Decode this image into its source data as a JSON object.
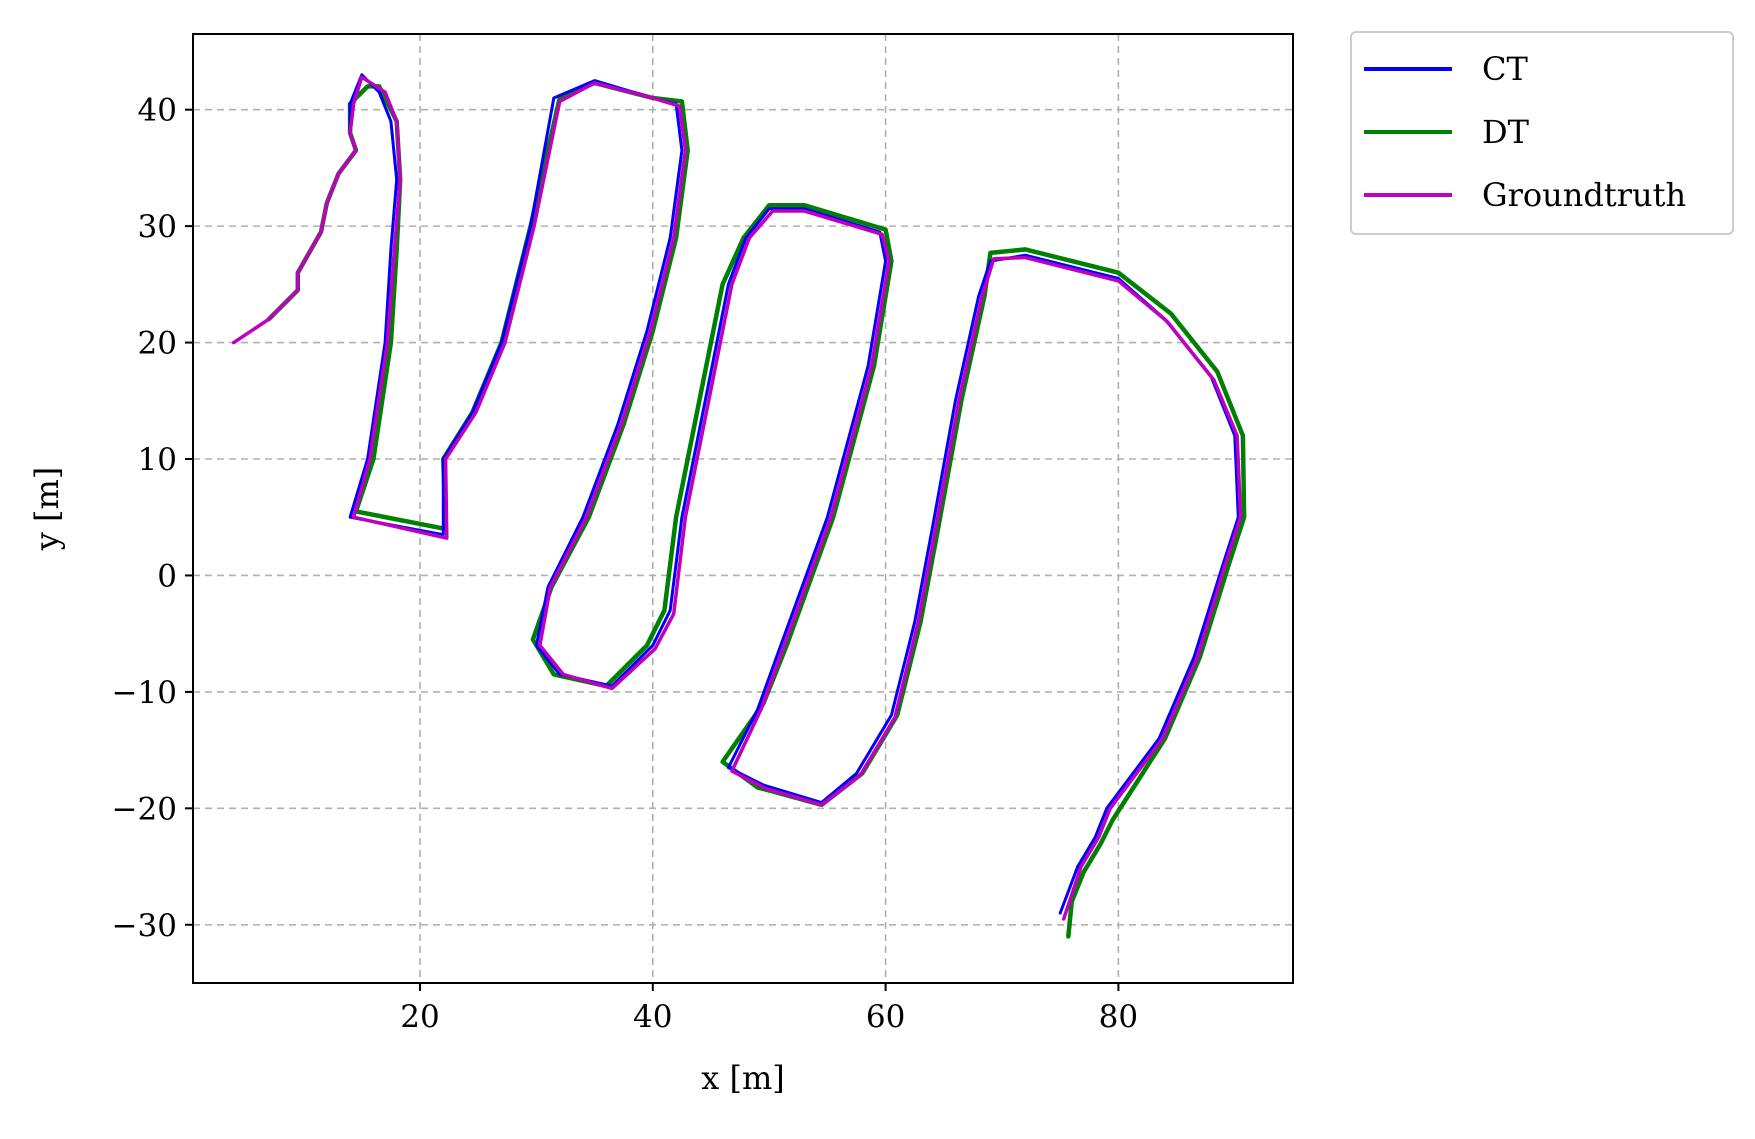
{
  "chart_data": {
    "type": "line",
    "title": "",
    "xlabel": "x [m]",
    "ylabel": "y [m]",
    "xlim": [
      0.5,
      95
    ],
    "ylim": [
      -35,
      46.5
    ],
    "xticks": [
      20,
      40,
      60,
      80
    ],
    "yticks": [
      -30,
      -20,
      -10,
      0,
      10,
      20,
      30,
      40
    ],
    "xtick_labels": [
      "20",
      "40",
      "60",
      "80"
    ],
    "ytick_labels": [
      "−30",
      "−20",
      "−10",
      "0",
      "10",
      "20",
      "30",
      "40"
    ],
    "grid": true,
    "legend_placement": "outside-top-right",
    "series": [
      {
        "name": "CT",
        "color": "#0000ff",
        "points": [
          [
            4,
            20
          ],
          [
            7,
            22
          ],
          [
            9.5,
            24.5
          ],
          [
            9.5,
            26
          ],
          [
            11.5,
            29.5
          ],
          [
            12,
            32
          ],
          [
            13,
            34.5
          ],
          [
            14.5,
            36.5
          ],
          [
            14,
            38
          ],
          [
            14,
            40.5
          ],
          [
            15,
            43
          ],
          [
            16.5,
            41.5
          ],
          [
            17.5,
            39
          ],
          [
            18,
            34
          ],
          [
            17.5,
            28
          ],
          [
            17,
            20
          ],
          [
            15.5,
            10
          ],
          [
            14,
            5
          ],
          [
            22,
            3.5
          ],
          [
            22,
            10
          ],
          [
            24.5,
            14
          ],
          [
            27,
            20
          ],
          [
            29.5,
            30
          ],
          [
            31.5,
            41
          ],
          [
            35,
            42.5
          ],
          [
            40,
            41
          ],
          [
            42,
            40.5
          ],
          [
            42.5,
            36.5
          ],
          [
            41.5,
            29
          ],
          [
            39.5,
            21
          ],
          [
            37,
            13
          ],
          [
            34,
            5
          ],
          [
            31,
            -1
          ],
          [
            30,
            -6
          ],
          [
            32,
            -8.5
          ],
          [
            36.5,
            -9.5
          ],
          [
            40,
            -6
          ],
          [
            41.5,
            -3
          ],
          [
            42.5,
            5
          ],
          [
            44.5,
            15
          ],
          [
            46.5,
            25
          ],
          [
            48,
            29
          ],
          [
            50,
            31.5
          ],
          [
            53,
            31.5
          ],
          [
            59.5,
            29.5
          ],
          [
            60,
            27
          ],
          [
            58.5,
            18
          ],
          [
            55,
            5
          ],
          [
            51,
            -6
          ],
          [
            49,
            -11.5
          ],
          [
            46.5,
            -16.5
          ],
          [
            49.5,
            -18
          ],
          [
            54.5,
            -19.5
          ],
          [
            57.5,
            -17
          ],
          [
            60.5,
            -12
          ],
          [
            62.5,
            -4
          ],
          [
            64,
            4
          ],
          [
            66,
            15
          ],
          [
            68,
            24
          ],
          [
            69,
            27
          ],
          [
            72,
            27.5
          ],
          [
            80,
            25.5
          ],
          [
            84,
            22
          ],
          [
            88,
            17
          ],
          [
            90,
            12
          ],
          [
            90.3,
            5
          ],
          [
            89,
            1
          ],
          [
            86.5,
            -7
          ],
          [
            83.5,
            -14
          ],
          [
            79,
            -20
          ],
          [
            78,
            -22.5
          ],
          [
            76.5,
            -25
          ],
          [
            75,
            -29
          ]
        ]
      },
      {
        "name": "DT",
        "color": "#008000",
        "points": [
          [
            7,
            22
          ],
          [
            9.5,
            24.5
          ],
          [
            9.5,
            26
          ],
          [
            11.5,
            29.5
          ],
          [
            12,
            32
          ],
          [
            13,
            34.5
          ],
          [
            14.5,
            36.5
          ],
          [
            14,
            38
          ],
          [
            14,
            40.5
          ],
          [
            15.5,
            42
          ],
          [
            16.5,
            42
          ],
          [
            18,
            39
          ],
          [
            18.3,
            34
          ],
          [
            18,
            28
          ],
          [
            17.5,
            20
          ],
          [
            16,
            10
          ],
          [
            14.5,
            5.5
          ],
          [
            22.2,
            4
          ],
          [
            22,
            10
          ],
          [
            24.5,
            14
          ],
          [
            27,
            20
          ],
          [
            29.5,
            30
          ],
          [
            32,
            41
          ],
          [
            35,
            42.3
          ],
          [
            40,
            41
          ],
          [
            42.5,
            40.7
          ],
          [
            43,
            36.5
          ],
          [
            42,
            29
          ],
          [
            40,
            21
          ],
          [
            37.5,
            13
          ],
          [
            34.5,
            5
          ],
          [
            31.3,
            -1
          ],
          [
            29.7,
            -5.5
          ],
          [
            31.5,
            -8.5
          ],
          [
            36,
            -9.5
          ],
          [
            39.5,
            -6
          ],
          [
            41,
            -3
          ],
          [
            42,
            5
          ],
          [
            44,
            15
          ],
          [
            46,
            25
          ],
          [
            47.8,
            29
          ],
          [
            50,
            31.8
          ],
          [
            53,
            31.8
          ],
          [
            60,
            29.7
          ],
          [
            60.5,
            27
          ],
          [
            59,
            18
          ],
          [
            55.5,
            5
          ],
          [
            51.5,
            -6
          ],
          [
            49.5,
            -11
          ],
          [
            46,
            -16
          ],
          [
            49,
            -18.2
          ],
          [
            54.5,
            -19.7
          ],
          [
            58,
            -17
          ],
          [
            61,
            -12
          ],
          [
            63,
            -4
          ],
          [
            64.5,
            4
          ],
          [
            66.5,
            15
          ],
          [
            68.5,
            24
          ],
          [
            69,
            27.7
          ],
          [
            72,
            28
          ],
          [
            80,
            26
          ],
          [
            84.5,
            22.5
          ],
          [
            88.5,
            17.5
          ],
          [
            90.7,
            12
          ],
          [
            90.8,
            5
          ],
          [
            89.5,
            1
          ],
          [
            87,
            -7
          ],
          [
            84,
            -14
          ],
          [
            79.5,
            -21
          ],
          [
            78.5,
            -23
          ],
          [
            77,
            -25.5
          ],
          [
            76,
            -28
          ],
          [
            75.7,
            -31
          ]
        ]
      },
      {
        "name": "Groundtruth",
        "color": "#bf00bf",
        "points": [
          [
            4,
            20
          ],
          [
            7,
            22
          ],
          [
            9.5,
            24.5
          ],
          [
            9.5,
            26
          ],
          [
            11.5,
            29.5
          ],
          [
            12,
            32
          ],
          [
            13,
            34.5
          ],
          [
            14.5,
            36.5
          ],
          [
            14,
            38
          ],
          [
            14.3,
            40.5
          ],
          [
            15,
            42.8
          ],
          [
            17,
            41.5
          ],
          [
            18,
            39
          ],
          [
            18.3,
            34
          ],
          [
            17.8,
            28
          ],
          [
            17.2,
            20
          ],
          [
            15.7,
            10
          ],
          [
            14.3,
            5
          ],
          [
            22.3,
            3.2
          ],
          [
            22.2,
            10
          ],
          [
            24.8,
            14
          ],
          [
            27.3,
            20
          ],
          [
            29.8,
            30
          ],
          [
            32,
            40.7
          ],
          [
            35,
            42.3
          ],
          [
            40,
            41
          ],
          [
            42.3,
            40.3
          ],
          [
            42.8,
            36.5
          ],
          [
            41.8,
            29
          ],
          [
            39.8,
            21
          ],
          [
            37.3,
            13
          ],
          [
            34.3,
            5
          ],
          [
            31.2,
            -1
          ],
          [
            30.3,
            -6
          ],
          [
            32.3,
            -8.5
          ],
          [
            36.5,
            -9.7
          ],
          [
            40.2,
            -6.3
          ],
          [
            41.8,
            -3.3
          ],
          [
            42.8,
            5
          ],
          [
            44.8,
            15
          ],
          [
            46.8,
            25
          ],
          [
            48.3,
            29
          ],
          [
            50.3,
            31.3
          ],
          [
            53,
            31.3
          ],
          [
            59.7,
            29.3
          ],
          [
            60.3,
            27
          ],
          [
            58.8,
            18
          ],
          [
            55.3,
            5
          ],
          [
            51.3,
            -6
          ],
          [
            49.3,
            -11.5
          ],
          [
            46.8,
            -16.8
          ],
          [
            49.7,
            -18.3
          ],
          [
            54.5,
            -19.7
          ],
          [
            57.8,
            -17.2
          ],
          [
            60.8,
            -12.2
          ],
          [
            62.8,
            -4
          ],
          [
            64.3,
            4
          ],
          [
            66.3,
            15
          ],
          [
            68.3,
            24
          ],
          [
            69.3,
            27.2
          ],
          [
            72,
            27.3
          ],
          [
            80,
            25.3
          ],
          [
            84.2,
            21.8
          ],
          [
            88.2,
            16.8
          ],
          [
            90.2,
            12
          ],
          [
            90.5,
            5
          ],
          [
            89.2,
            1
          ],
          [
            86.8,
            -7
          ],
          [
            83.8,
            -14
          ],
          [
            79.3,
            -20
          ],
          [
            78.3,
            -22.5
          ],
          [
            76.8,
            -25
          ],
          [
            75.3,
            -29.5
          ]
        ]
      }
    ]
  }
}
